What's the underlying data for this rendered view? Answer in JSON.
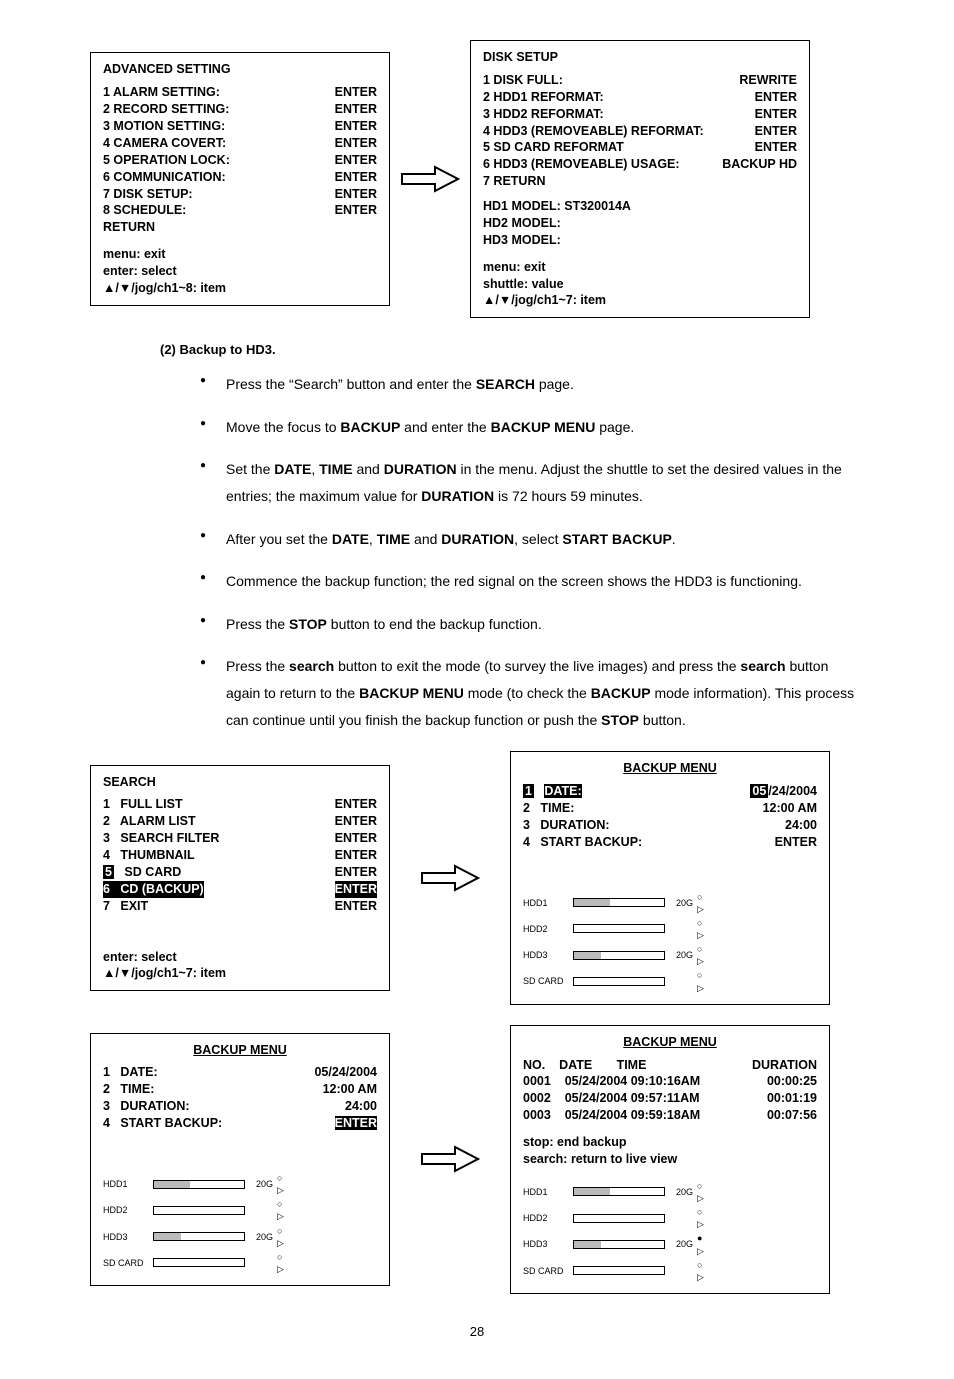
{
  "advanced": {
    "title": "ADVANCED SETTING",
    "rows": [
      {
        "label": "1 ALARM SETTING:",
        "val": "ENTER"
      },
      {
        "label": "2 RECORD SETTING:",
        "val": "ENTER"
      },
      {
        "label": "3 MOTION SETTING:",
        "val": "ENTER"
      },
      {
        "label": "4 CAMERA COVERT:",
        "val": "ENTER"
      },
      {
        "label": "5 OPERATION LOCK:",
        "val": "ENTER"
      },
      {
        "label": "6 COMMUNICATION:",
        "val": "ENTER"
      },
      {
        "label": "7 DISK SETUP:",
        "val": "ENTER"
      },
      {
        "label": "8 SCHEDULE:",
        "val": "ENTER"
      },
      {
        "label": "RETURN",
        "val": ""
      }
    ],
    "hint1": "menu: exit",
    "hint2": "enter: select",
    "hint3": "▲/▼/jog/ch1~8: item"
  },
  "disk": {
    "title": "DISK SETUP",
    "rows": [
      {
        "label": "1 DISK FULL:",
        "val": "REWRITE"
      },
      {
        "label": "2 HDD1 REFORMAT:",
        "val": "ENTER"
      },
      {
        "label": "3 HDD2 REFORMAT:",
        "val": "ENTER"
      },
      {
        "label": "4 HDD3 (REMOVEABLE) REFORMAT:",
        "val": "ENTER"
      },
      {
        "label": "5 SD CARD REFORMAT",
        "val": "ENTER"
      },
      {
        "label": "6 HDD3 (REMOVEABLE) USAGE:",
        "val": "BACKUP HD"
      },
      {
        "label": "7 RETURN",
        "val": ""
      }
    ],
    "models": [
      "HD1 MODEL: ST320014A",
      "HD2 MODEL:",
      "HD3 MODEL:"
    ],
    "hint1": "menu: exit",
    "hint2": "shuttle: value",
    "hint3": "▲/▼/jog/ch1~7: item"
  },
  "sectionHead": "(2) Backup to HD3.",
  "bullets": [
    "Press the “Search” button and enter the <b>SEARCH</b> page.",
    "Move the focus to <b>BACKUP</b> and enter the <b>BACKUP MENU</b> page.",
    "Set the <b>DATE</b>, <b>TIME</b> and <b>DURATION</b> in the menu. Adjust the shuttle to set the desired values in the entries; the maximum value for <b>DURATION</b> is 72 hours 59 minutes.",
    "After you set the <b>DATE</b>, <b>TIME</b> and <b>DURATION</b>, select <b>START BACKUP</b>.",
    "Commence the backup function; the red signal on the screen shows the HDD3 is functioning.",
    "Press the <b>STOP</b> button to end the backup function.",
    "Press the <b>search</b> button to exit the mode (to survey the live images) and press the <b>search</b> button again to return to the <b>BACKUP MENU</b> mode (to check the <b>BACKUP</b> mode information). This process can continue until you finish the backup function or push the <b>STOP</b> button."
  ],
  "search": {
    "title": "SEARCH",
    "rows": [
      {
        "label": "1   FULL LIST",
        "val": "ENTER"
      },
      {
        "label": "2   ALARM LIST",
        "val": "ENTER"
      },
      {
        "label": "3   SEARCH FILTER",
        "val": "ENTER"
      },
      {
        "label": "4   THUMBNAIL",
        "val": "ENTER"
      },
      {
        "label": "5   SD CARD",
        "val": "ENTER",
        "hlnum": true
      },
      {
        "label": "6   CD (BACKUP)",
        "val": "ENTER",
        "hl": true
      },
      {
        "label": "7   EXIT",
        "val": "ENTER"
      }
    ],
    "hint1": "enter: select",
    "hint2": "▲/▼/jog/ch1~7: item"
  },
  "backup1": {
    "title": "BACKUP MENU",
    "rows": [
      {
        "num": "1",
        "label": "DATE:",
        "val": "05/24/2004",
        "hlnum": true,
        "hlval_part": "05"
      },
      {
        "num": "2",
        "label": "TIME:",
        "val": "12:00 AM"
      },
      {
        "num": "3",
        "label": "DURATION:",
        "val": "24:00"
      },
      {
        "num": "4",
        "label": "START BACKUP:",
        "val": "ENTER"
      }
    ],
    "hdd": [
      {
        "name": "HDD1",
        "fill": 40,
        "cap": "20G",
        "sym": "○ ▷"
      },
      {
        "name": "HDD2",
        "fill": 0,
        "cap": "",
        "sym": "○ ▷"
      },
      {
        "name": "HDD3",
        "fill": 30,
        "cap": "20G",
        "sym": "○ ▷"
      },
      {
        "name": "SD CARD",
        "fill": 0,
        "cap": "",
        "sym": "○ ▷"
      }
    ]
  },
  "backup2": {
    "title": "BACKUP MENU",
    "rows": [
      {
        "num": "1",
        "label": "DATE:",
        "val": "05/24/2004"
      },
      {
        "num": "2",
        "label": "TIME:",
        "val": "12:00 AM"
      },
      {
        "num": "3",
        "label": "DURATION:",
        "val": "24:00"
      },
      {
        "num": "4",
        "label": "START BACKUP:",
        "val": "ENTER",
        "hlval": true
      }
    ],
    "hdd": [
      {
        "name": "HDD1",
        "fill": 40,
        "cap": "20G",
        "sym": "○ ▷"
      },
      {
        "name": "HDD2",
        "fill": 0,
        "cap": "",
        "sym": "○ ▷"
      },
      {
        "name": "HDD3",
        "fill": 30,
        "cap": "20G",
        "sym": "○ ▷"
      },
      {
        "name": "SD CARD",
        "fill": 0,
        "cap": "",
        "sym": "○ ▷"
      }
    ]
  },
  "backup3": {
    "title": "BACKUP MENU",
    "header": {
      "no": "NO.",
      "date": "DATE",
      "time": "TIME",
      "dur": "DURATION"
    },
    "rows": [
      {
        "no": "0001",
        "dt": "05/24/2004 09:10:16AM",
        "dur": "00:00:25"
      },
      {
        "no": "0002",
        "dt": "05/24/2004 09:57:11AM",
        "dur": "00:01:19"
      },
      {
        "no": "0003",
        "dt": "05/24/2004 09:59:18AM",
        "dur": "00:07:56"
      }
    ],
    "hint1": "stop: end backup",
    "hint2": "search: return to live view",
    "hdd": [
      {
        "name": "HDD1",
        "fill": 40,
        "cap": "20G",
        "sym": "○ ▷"
      },
      {
        "name": "HDD2",
        "fill": 0,
        "cap": "",
        "sym": "○ ▷"
      },
      {
        "name": "HDD3",
        "fill": 30,
        "cap": "20G",
        "sym": "● ▷"
      },
      {
        "name": "SD CARD",
        "fill": 0,
        "cap": "",
        "sym": "○ ▷"
      }
    ]
  },
  "pageNumber": "28"
}
